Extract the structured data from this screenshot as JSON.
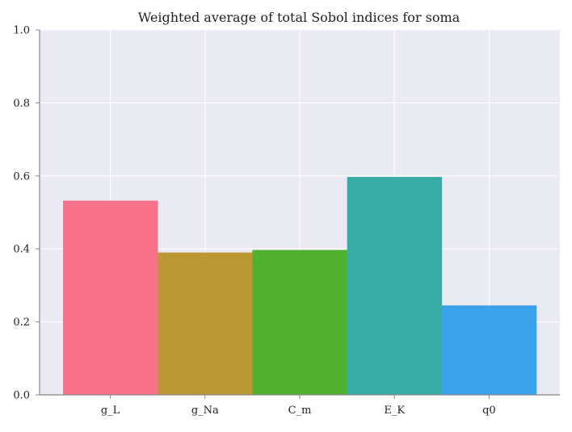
{
  "chart_data": {
    "type": "bar",
    "title": "Weighted average of total Sobol indices for soma",
    "xlabel": "",
    "ylabel": "",
    "categories": [
      "g_L",
      "g_Na",
      "C_m",
      "E_K",
      "q0"
    ],
    "values": [
      0.532,
      0.39,
      0.397,
      0.597,
      0.245
    ],
    "colors": [
      "#f77189",
      "#bb9832",
      "#50b131",
      "#36ada4",
      "#3ba3ec"
    ],
    "ylim": [
      0,
      1.0
    ],
    "yticks": [
      "0.0",
      "0.2",
      "0.4",
      "0.6",
      "0.8",
      "1.0"
    ],
    "ytick_values": [
      0,
      0.2,
      0.4,
      0.6,
      0.8,
      1.0
    ],
    "grid": true,
    "plot_background": "#eaeaf2",
    "grid_color": "#ffffff",
    "axis_color": "#888888"
  }
}
